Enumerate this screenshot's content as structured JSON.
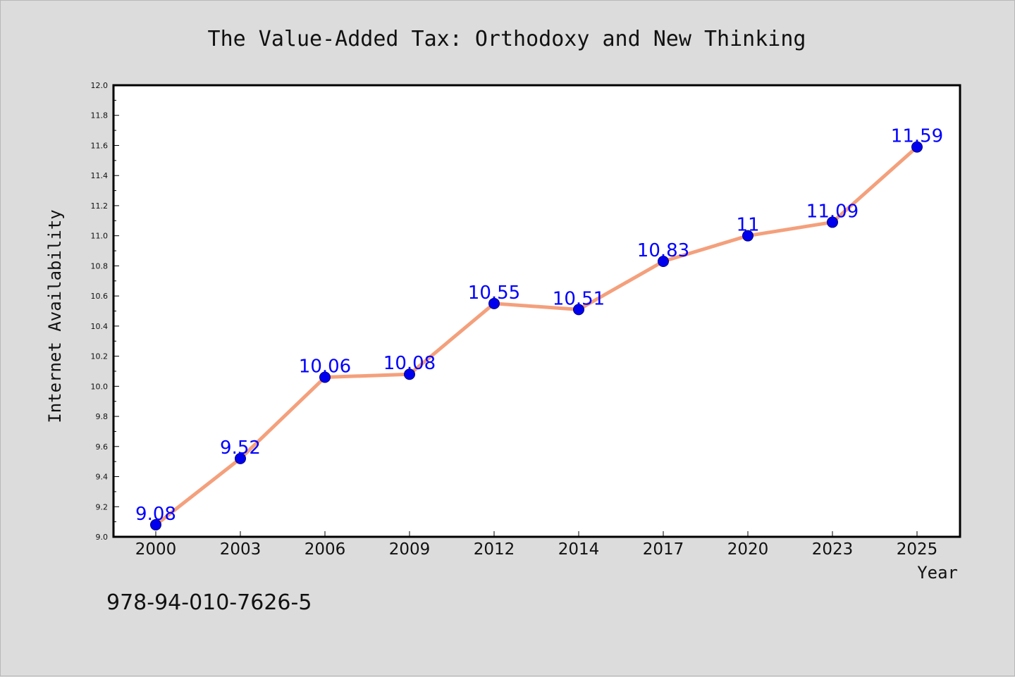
{
  "chart_data": {
    "type": "line",
    "title": "The Value-Added Tax: Orthodoxy and New Thinking",
    "xlabel": "Year",
    "ylabel": "Internet Availability",
    "categories": [
      "2000",
      "2003",
      "2006",
      "2009",
      "2012",
      "2014",
      "2017",
      "2020",
      "2023",
      "2025"
    ],
    "series": [
      {
        "values": [
          9.08,
          9.52,
          10.06,
          10.08,
          10.55,
          10.51,
          10.83,
          11,
          11.09,
          11.59
        ],
        "data_labels": [
          "9.08",
          "9.52",
          "10.06",
          "10.08",
          "10.55",
          "10.51",
          "10.83",
          "11",
          "11.09",
          "11.59"
        ]
      }
    ],
    "yticks": [
      "9.0",
      "9.2",
      "9.4",
      "9.6",
      "9.8",
      "10.0",
      "10.2",
      "10.4",
      "10.6",
      "10.8",
      "11.0",
      "11.2",
      "11.4",
      "11.6",
      "11.8",
      "12.0"
    ],
    "ylim": [
      9.0,
      12.0
    ],
    "grid": false,
    "colors": {
      "line": "#f4a07c",
      "marker": "#0000ee",
      "marker_edge": "#000080",
      "data_label": "#0000ff",
      "background": "#dcdcdc",
      "plot_area": "#ffffff"
    }
  },
  "annotation": {
    "isbn": "978-94-010-7626-5"
  }
}
